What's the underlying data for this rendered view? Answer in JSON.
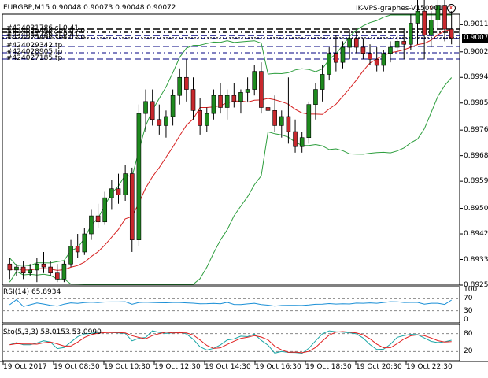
{
  "header": {
    "symbol_info": "EURGBP,M15  0.90048 0.90073 0.90048 0.90072",
    "indicator_name": "IK-VPS-graphes-V150901"
  },
  "orders": [
    "#424031786 sl 0.41",
    "#424025496 sell 0.40",
    "#424031786 sl 0.41",
    "#424025496 sell 0.40",
    "#424029342 tp",
    "#424028905 tp",
    "#424027185 tp"
  ],
  "price_axis": [
    "0.90115",
    "0.90025",
    "0.89940",
    "0.89855",
    "0.89765",
    "0.89680",
    "0.89595",
    "0.89505",
    "0.89420",
    "0.89335",
    "0.89250"
  ],
  "current_price": "0.90072",
  "rsi": {
    "label": "RSI(14) 65.8934",
    "levels": [
      "100",
      "70",
      "30",
      "0"
    ],
    "value": 65.8934
  },
  "stochastic": {
    "label": "Sto(5,3,3) 58.0153 53.0990",
    "levels": [
      "80",
      "20"
    ],
    "main": 58.0153,
    "signal": 53.099
  },
  "time_axis": [
    "19 Oct 2017",
    "19 Oct 08:30",
    "19 Oct 10:30",
    "19 Oct 12:30",
    "19 Oct 14:30",
    "19 Oct 16:30",
    "19 Oct 18:30",
    "19 Oct 20:30",
    "19 Oct 22:30"
  ],
  "colors": {
    "bull": "#1e8a1e",
    "bear": "#c8282d",
    "bands": "#2e9e3e",
    "ma": "#d62020",
    "rsi": "#1a8fd6",
    "sto_main": "#1aa6a6",
    "sto_signal": "#e02020",
    "order_line": "#000080"
  },
  "chart_data": {
    "type": "candlestick",
    "y_range": [
      0.8925,
      0.9015
    ],
    "candles": [
      [
        0.8932,
        0.8934,
        0.8927,
        0.893
      ],
      [
        0.893,
        0.8932,
        0.8928,
        0.8931
      ],
      [
        0.8931,
        0.8933,
        0.8927,
        0.8929
      ],
      [
        0.8929,
        0.8932,
        0.8928,
        0.893
      ],
      [
        0.893,
        0.8934,
        0.8926,
        0.8932
      ],
      [
        0.8932,
        0.8936,
        0.8929,
        0.8931
      ],
      [
        0.8931,
        0.8933,
        0.8928,
        0.8929
      ],
      [
        0.8929,
        0.8932,
        0.8926,
        0.8927
      ],
      [
        0.8927,
        0.8933,
        0.8926,
        0.8932
      ],
      [
        0.8932,
        0.894,
        0.8931,
        0.8938
      ],
      [
        0.8938,
        0.8942,
        0.8934,
        0.8936
      ],
      [
        0.8936,
        0.8944,
        0.8935,
        0.8942
      ],
      [
        0.8942,
        0.895,
        0.894,
        0.8948
      ],
      [
        0.8948,
        0.8952,
        0.8944,
        0.8946
      ],
      [
        0.8946,
        0.8956,
        0.8945,
        0.8954
      ],
      [
        0.8954,
        0.896,
        0.895,
        0.8957
      ],
      [
        0.8957,
        0.8962,
        0.8952,
        0.8955
      ],
      [
        0.8955,
        0.8965,
        0.8953,
        0.8962
      ],
      [
        0.8962,
        0.8964,
        0.8936,
        0.894
      ],
      [
        0.894,
        0.8985,
        0.8938,
        0.8982
      ],
      [
        0.8982,
        0.899,
        0.8976,
        0.8986
      ],
      [
        0.8986,
        0.899,
        0.8978,
        0.898
      ],
      [
        0.898,
        0.8985,
        0.8975,
        0.8978
      ],
      [
        0.8978,
        0.8983,
        0.8974,
        0.8981
      ],
      [
        0.8981,
        0.899,
        0.8978,
        0.8988
      ],
      [
        0.8988,
        0.8997,
        0.8985,
        0.8994
      ],
      [
        0.8994,
        0.9,
        0.8986,
        0.899
      ],
      [
        0.899,
        0.8994,
        0.898,
        0.8983
      ],
      [
        0.8983,
        0.8987,
        0.8975,
        0.8978
      ],
      [
        0.8978,
        0.8984,
        0.8976,
        0.8982
      ],
      [
        0.8982,
        0.899,
        0.898,
        0.8988
      ],
      [
        0.8988,
        0.8992,
        0.8982,
        0.8984
      ],
      [
        0.8984,
        0.899,
        0.898,
        0.8988
      ],
      [
        0.8988,
        0.8992,
        0.8984,
        0.8986
      ],
      [
        0.8986,
        0.899,
        0.8982,
        0.8989
      ],
      [
        0.8989,
        0.8994,
        0.8986,
        0.899
      ],
      [
        0.899,
        0.8998,
        0.8988,
        0.8996
      ],
      [
        0.8996,
        0.8999,
        0.8982,
        0.8984
      ],
      [
        0.8984,
        0.899,
        0.8978,
        0.8983
      ],
      [
        0.8983,
        0.8988,
        0.8976,
        0.8978
      ],
      [
        0.8978,
        0.8983,
        0.8974,
        0.8981
      ],
      [
        0.8981,
        0.8994,
        0.8972,
        0.8976
      ],
      [
        0.8976,
        0.898,
        0.8969,
        0.8971
      ],
      [
        0.8971,
        0.8976,
        0.8969,
        0.8974
      ],
      [
        0.8974,
        0.8986,
        0.8972,
        0.8985
      ],
      [
        0.8985,
        0.8992,
        0.898,
        0.899
      ],
      [
        0.899,
        0.8998,
        0.8986,
        0.8995
      ],
      [
        0.8995,
        0.9004,
        0.8993,
        0.9002
      ],
      [
        0.9002,
        0.9008,
        0.8996,
        0.8999
      ],
      [
        0.8999,
        0.9006,
        0.8997,
        0.9004
      ],
      [
        0.9004,
        0.901,
        0.9,
        0.9007
      ],
      [
        0.9007,
        0.9009,
        0.9002,
        0.9004
      ],
      [
        0.9004,
        0.9007,
        0.9,
        0.9002
      ],
      [
        0.9002,
        0.9005,
        0.8998,
        0.9
      ],
      [
        0.9,
        0.9004,
        0.8996,
        0.8998
      ],
      [
        0.8998,
        0.9003,
        0.8996,
        0.9002
      ],
      [
        0.9002,
        0.9006,
        0.8999,
        0.9004
      ],
      [
        0.9004,
        0.9008,
        0.9002,
        0.9006
      ],
      [
        0.9006,
        0.901,
        0.9,
        0.9005
      ],
      [
        0.9005,
        0.9015,
        0.9003,
        0.9012
      ],
      [
        0.9012,
        0.902,
        0.9005,
        0.9016
      ],
      [
        0.9016,
        0.9026,
        0.9,
        0.9008
      ],
      [
        0.9008,
        0.9016,
        0.9004,
        0.9013
      ],
      [
        0.9013,
        0.9022,
        0.9008,
        0.9018
      ],
      [
        0.9018,
        0.902,
        0.9006,
        0.901
      ],
      [
        0.901,
        0.9016,
        0.9005,
        0.9007
      ]
    ]
  }
}
